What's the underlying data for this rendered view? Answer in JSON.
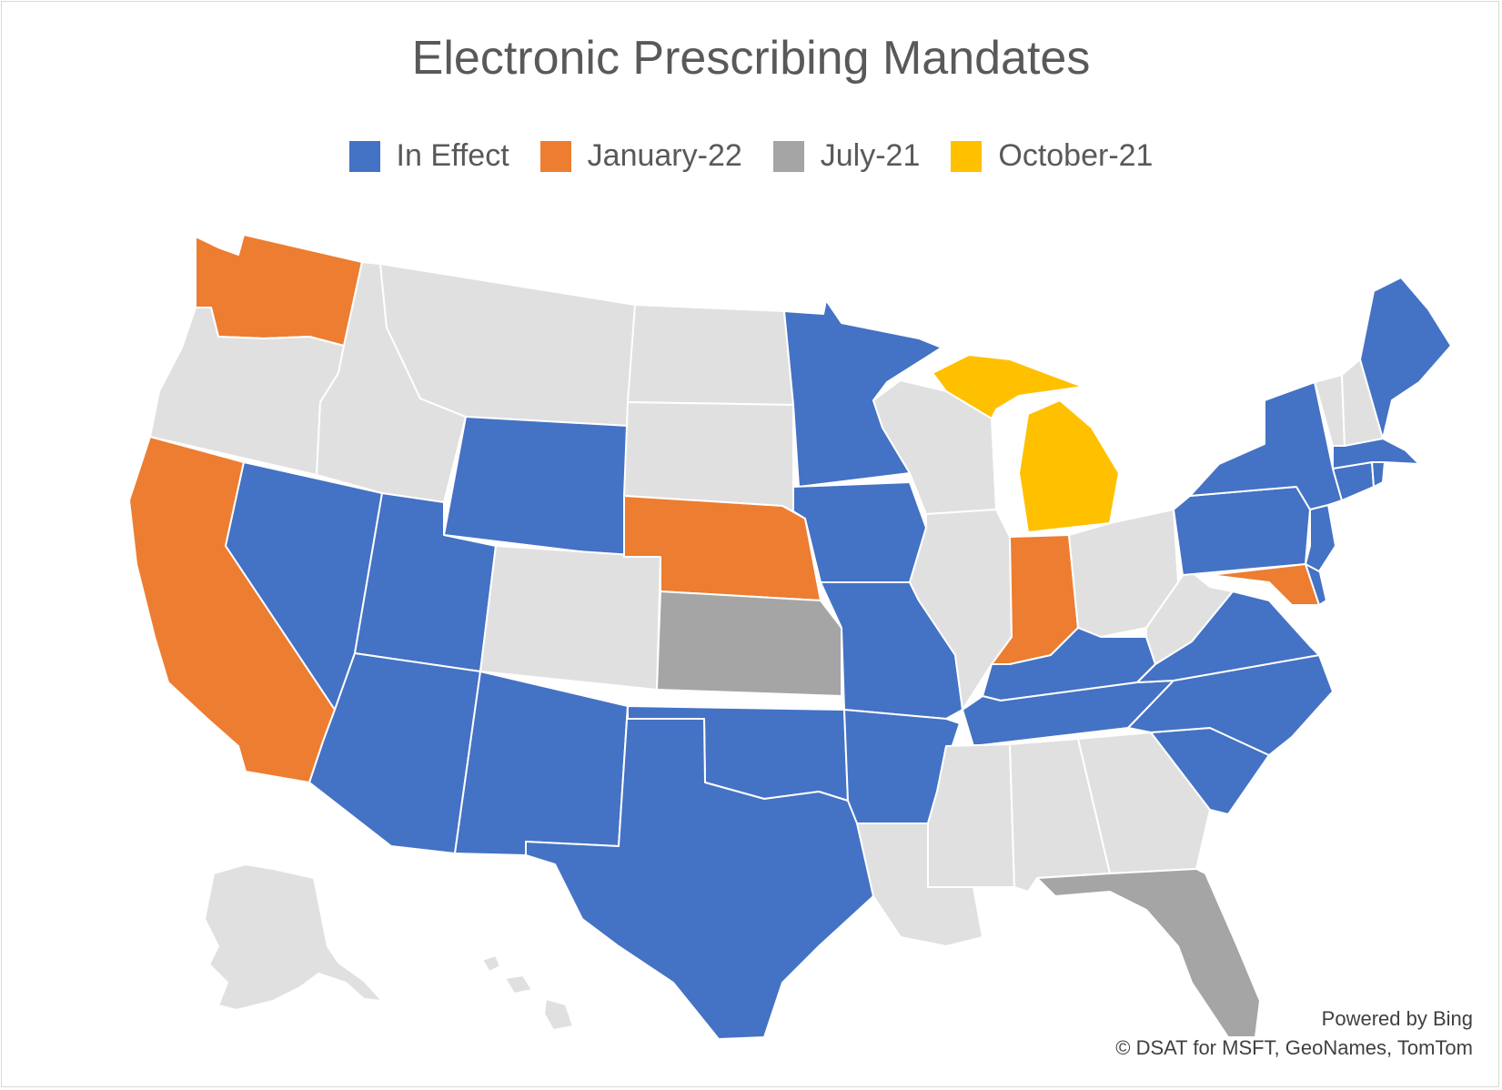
{
  "title": "Electronic Prescribing Mandates",
  "legend": [
    {
      "label": "In Effect",
      "color": "#4472c4"
    },
    {
      "label": "January-22",
      "color": "#ed7d31"
    },
    {
      "label": "July-21",
      "color": "#a5a5a5"
    },
    {
      "label": "October-21",
      "color": "#ffc000"
    }
  ],
  "no_data_color": "#e0e0e0",
  "status_by_state": {
    "WA": "January-22",
    "CA": "January-22",
    "NE": "January-22",
    "IN": "January-22",
    "MD": "January-22",
    "KS": "July-21",
    "FL": "July-21",
    "MI": "October-21",
    "NV": "In Effect",
    "UT": "In Effect",
    "AZ": "In Effect",
    "NM": "In Effect",
    "TX": "In Effect",
    "OK": "In Effect",
    "WY": "In Effect",
    "MN": "In Effect",
    "IA": "In Effect",
    "MO": "In Effect",
    "AR": "In Effect",
    "TN": "In Effect",
    "KY": "In Effect",
    "VA": "In Effect",
    "NC": "In Effect",
    "SC": "In Effect",
    "PA": "In Effect",
    "NY": "In Effect",
    "NJ": "In Effect",
    "DE": "In Effect",
    "CT": "In Effect",
    "RI": "In Effect",
    "MA": "In Effect",
    "ME": "In Effect",
    "OR": "none",
    "ID": "none",
    "MT": "none",
    "ND": "none",
    "SD": "none",
    "CO": "none",
    "WI": "none",
    "IL": "none",
    "OH": "none",
    "WV": "none",
    "MS": "none",
    "AL": "none",
    "GA": "none",
    "LA": "none",
    "VT": "none",
    "NH": "none",
    "AK": "none",
    "HI": "none"
  },
  "attribution": {
    "line1": "Powered by Bing",
    "line2": "© DSAT for MSFT, GeoNames, TomTom"
  }
}
